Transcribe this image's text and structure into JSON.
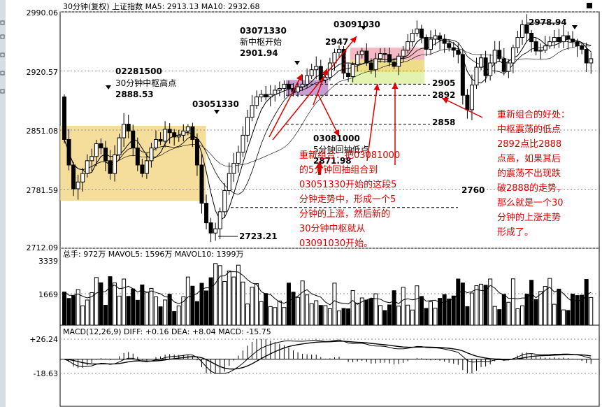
{
  "colors": {
    "candle": "#000000",
    "zhongshu_30min": "#f2d27a",
    "zhongshu_5min": "#b67fc4",
    "zhongshu_new_top": "#f3a8b4",
    "zhongshu_new_mid": "#e9d36a",
    "zhongshu_new_bot": "#dcef9b",
    "annotation_red": "#e00000",
    "macd_red": "#000000"
  },
  "header": {
    "price": "30分钟(复权)  上证指数  MA5: 2913.13  MA10: 2932.68",
    "volume": "总手: 972万  MAVOL5: 1596万  MAVOL10: 1399万",
    "macd": "MACD(12,26,9)  DIFF: +0.16  DEA: +8.04  MACD: -15.75"
  },
  "chart_data": [
    {
      "type": "candlestick",
      "panel": "price",
      "y_ticks": [
        "2990.06",
        "2920.57",
        "2851.08",
        "2781.59",
        "2712.09"
      ],
      "ylim": [
        2712.09,
        2990.06
      ],
      "levels": [
        {
          "label": "2905",
          "value": 2905
        },
        {
          "label": "2892",
          "value": 2892
        },
        {
          "label": "2858",
          "value": 2858
        },
        {
          "label": "2760",
          "value": 2760
        }
      ],
      "zhongshu": [
        {
          "start": 0,
          "end": 30,
          "low": 2768,
          "high": 2856
        },
        {
          "start": 49,
          "end": 57,
          "low": 2892,
          "high": 2910
        },
        {
          "start": 63,
          "end": 78,
          "low": 2905,
          "high": 2948
        }
      ],
      "extremes": [
        {
          "label": "2978.94",
          "value": 2978.94
        },
        {
          "label": "2723.21",
          "value": 2723.21
        }
      ],
      "annotations": [
        {
          "time": "02281500",
          "text": "30分钟中枢高点",
          "price": "2888.53"
        },
        {
          "time": "03051330"
        },
        {
          "time": "03071330",
          "text": "新中枢开始",
          "price": "2901.94"
        },
        {
          "time": "03091030",
          "price": "2947"
        },
        {
          "time": "03081000",
          "text": "5分钟回抽低点",
          "price": "2871.98"
        }
      ],
      "close": [
        2840,
        2810,
        2782,
        2790,
        2800,
        2815,
        2820,
        2835,
        2830,
        2815,
        2800,
        2822,
        2842,
        2858,
        2850,
        2830,
        2810,
        2800,
        2815,
        2830,
        2840,
        2838,
        2852,
        2848,
        2843,
        2845,
        2850,
        2855,
        2840,
        2810,
        2765,
        2742,
        2730,
        2735,
        2755,
        2780,
        2800,
        2812,
        2825,
        2845,
        2866,
        2880,
        2890,
        2893,
        2890,
        2893,
        2898,
        2900,
        2905,
        2900,
        2896,
        2902,
        2905,
        2915,
        2922,
        2926,
        2910,
        2913,
        2930,
        2942,
        2946,
        2918,
        2914,
        2928,
        2940,
        2944,
        2930,
        2922,
        2935,
        2941,
        2940,
        2931,
        2926,
        2938,
        2945,
        2955,
        2965,
        2970,
        2960,
        2946,
        2958,
        2962,
        2958,
        2953,
        2948,
        2945,
        2940,
        2892,
        2875,
        2904,
        2925,
        2936,
        2915,
        2930,
        2945,
        2935,
        2920,
        2930,
        2948,
        2960,
        2975,
        2965,
        2955,
        2944,
        2945,
        2950,
        2955,
        2960,
        2955,
        2962,
        2958,
        2955,
        2950,
        2946,
        2930,
        2935
      ]
    },
    {
      "type": "bar",
      "panel": "volume",
      "y_ticks": [
        "3339",
        "1669"
      ],
      "ylim": [
        0,
        3339
      ],
      "unit": "万"
    },
    {
      "type": "bar",
      "panel": "macd",
      "y_ticks": [
        "+26.24",
        "-18.63"
      ],
      "ylim": [
        -18.63,
        26.24
      ]
    }
  ],
  "texts": {
    "left_explanation": [
      "重新组合：把03081000",
      "的5分钟回抽组合到",
      "03051330开始的这段5",
      "分钟走势中，形成一个5",
      "分钟的上涨，然后新的",
      "30分钟中枢就从",
      "03091030开始。"
    ],
    "right_explanation": [
      "重新组合的好处：",
      "中枢震荡的低点",
      "2892点比2888",
      "点高，如果其后",
      "的震荡不出现跌",
      "破2888的走势，",
      "那么就是一个30",
      "分钟的上涨走势",
      "形成了。"
    ]
  }
}
